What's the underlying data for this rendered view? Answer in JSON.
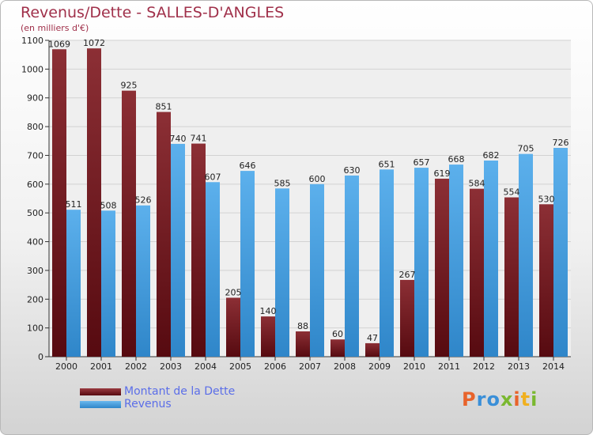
{
  "header": {
    "title": "Revenus/Dette - SALLES-D'ANGLES",
    "subtitle": "(en milliers d'€)"
  },
  "legend": {
    "items": [
      {
        "label": "Montant de la Dette",
        "color": "#7a1b22"
      },
      {
        "label": "Revenus",
        "color": "#4fa3e3"
      }
    ]
  },
  "logo": {
    "text": "Proxiti"
  },
  "chart_data": {
    "type": "bar",
    "title": "Revenus/Dette - SALLES-D'ANGLES",
    "subtitle": "(en milliers d'€)",
    "categories": [
      "2000",
      "2001",
      "2002",
      "2003",
      "2004",
      "2005",
      "2006",
      "2007",
      "2008",
      "2009",
      "2010",
      "2011",
      "2012",
      "2013",
      "2014"
    ],
    "series": [
      {
        "name": "Montant de la Dette",
        "color": "#7a1b22",
        "values": [
          1069,
          1072,
          925,
          851,
          741,
          205,
          140,
          88,
          60,
          47,
          267,
          619,
          584,
          554,
          530
        ]
      },
      {
        "name": "Revenus",
        "color": "#4fa3e3",
        "values": [
          511,
          508,
          526,
          740,
          607,
          646,
          585,
          600,
          630,
          651,
          657,
          668,
          682,
          705,
          726
        ]
      }
    ],
    "ylim": [
      0,
      1100
    ],
    "yticks": [
      0,
      100,
      200,
      300,
      400,
      500,
      600,
      700,
      800,
      900,
      1000,
      1100
    ],
    "grid": true,
    "legend_position": "bottom-left"
  }
}
